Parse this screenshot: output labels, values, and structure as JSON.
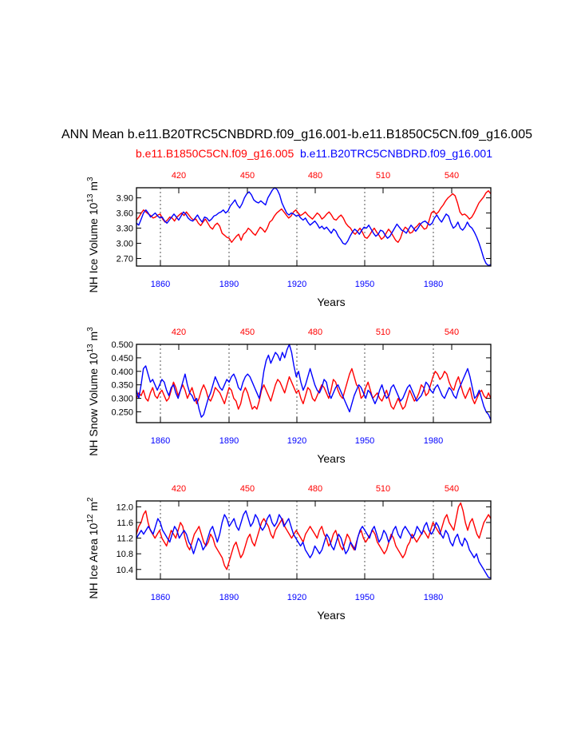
{
  "page": {
    "title": "ANN Mean b.e11.B20TRC5CNBDRD.f09_g16.001-b.e11.B1850C5CN.f09_g16.005",
    "subtitle_left": "b.e11.B1850C5CN.f09_g16.005",
    "subtitle_right": "b.e11.B20TRC5CNBDRD.f09_g16.001"
  },
  "colors": {
    "series_a": "#ff0000",
    "series_b": "#0000ff",
    "axis": "#000000",
    "ref": "#555555"
  },
  "chart_data": [
    {
      "type": "line",
      "title": "NH Ice Volume",
      "ylabel_main": "NH Ice Volume 10",
      "ylabel_exp": "13",
      "ylabel_unit": " m",
      "ylabel_unit_exp": "3",
      "xlabel": "Years",
      "xlim_bottom": [
        1850,
        2005
      ],
      "xticks_bottom": [
        "1860",
        "1890",
        "1920",
        "1950",
        "1980"
      ],
      "xticks_top": [
        "420",
        "450",
        "480",
        "510",
        "540"
      ],
      "ylim": [
        2.55,
        4.1
      ],
      "yticks": [
        "2.70",
        "3.00",
        "3.30",
        "3.60",
        "3.90"
      ],
      "series": [
        {
          "name": "b.e11.B1850C5CN.f09_g16.005",
          "color": "#ff0000",
          "values": [
            3.46,
            3.52,
            3.6,
            3.66,
            3.62,
            3.58,
            3.55,
            3.5,
            3.52,
            3.56,
            3.58,
            3.48,
            3.42,
            3.46,
            3.52,
            3.5,
            3.44,
            3.52,
            3.56,
            3.6,
            3.55,
            3.62,
            3.56,
            3.5,
            3.46,
            3.48,
            3.4,
            3.35,
            3.42,
            3.48,
            3.4,
            3.32,
            3.28,
            3.36,
            3.4,
            3.34,
            3.2,
            3.16,
            3.12,
            3.1,
            3.02,
            3.08,
            3.14,
            3.18,
            3.06,
            3.18,
            3.22,
            3.3,
            3.26,
            3.2,
            3.16,
            3.24,
            3.32,
            3.28,
            3.22,
            3.3,
            3.42,
            3.46,
            3.54,
            3.6,
            3.64,
            3.68,
            3.62,
            3.56,
            3.5,
            3.54,
            3.62,
            3.66,
            3.6,
            3.55,
            3.58,
            3.62,
            3.56,
            3.52,
            3.48,
            3.54,
            3.6,
            3.56,
            3.48,
            3.52,
            3.58,
            3.62,
            3.56,
            3.48,
            3.46,
            3.52,
            3.56,
            3.5,
            3.4,
            3.34,
            3.3,
            3.22,
            3.18,
            3.24,
            3.3,
            3.22,
            3.12,
            3.1,
            3.16,
            3.24,
            3.3,
            3.22,
            3.16,
            3.08,
            3.12,
            3.2,
            3.28,
            3.22,
            3.14,
            3.06,
            3.02,
            3.1,
            3.24,
            3.32,
            3.28,
            3.2,
            3.22,
            3.3,
            3.34,
            3.4,
            3.34,
            3.28,
            3.3,
            3.44,
            3.6,
            3.64,
            3.58,
            3.62,
            3.7,
            3.76,
            3.84,
            3.9,
            3.94,
            3.98,
            3.94,
            3.8,
            3.62,
            3.56,
            3.58,
            3.54,
            3.48,
            3.52,
            3.6,
            3.7,
            3.8,
            3.86,
            3.92,
            4.0,
            4.04,
            3.98
          ]
        },
        {
          "name": "b.e11.B20TRC5CNBDRD.f09_g16.001",
          "color": "#0000ff",
          "values": [
            3.4,
            3.36,
            3.48,
            3.6,
            3.66,
            3.6,
            3.52,
            3.56,
            3.6,
            3.54,
            3.5,
            3.52,
            3.44,
            3.4,
            3.46,
            3.52,
            3.58,
            3.52,
            3.46,
            3.54,
            3.62,
            3.58,
            3.5,
            3.46,
            3.44,
            3.5,
            3.56,
            3.48,
            3.42,
            3.52,
            3.5,
            3.44,
            3.48,
            3.54,
            3.56,
            3.6,
            3.62,
            3.66,
            3.6,
            3.64,
            3.74,
            3.8,
            3.86,
            3.76,
            3.7,
            3.78,
            3.9,
            3.98,
            4.02,
            3.96,
            3.86,
            3.82,
            3.8,
            3.84,
            3.8,
            3.76,
            3.9,
            3.98,
            4.06,
            4.1,
            4.06,
            3.96,
            3.8,
            3.7,
            3.6,
            3.56,
            3.6,
            3.58,
            3.54,
            3.56,
            3.5,
            3.46,
            3.5,
            3.42,
            3.36,
            3.4,
            3.44,
            3.38,
            3.3,
            3.34,
            3.28,
            3.32,
            3.26,
            3.2,
            3.28,
            3.24,
            3.14,
            3.08,
            3.0,
            2.98,
            3.04,
            3.14,
            3.22,
            3.28,
            3.24,
            3.18,
            3.26,
            3.32,
            3.3,
            3.36,
            3.28,
            3.2,
            3.14,
            3.18,
            3.26,
            3.24,
            3.16,
            3.1,
            3.14,
            3.22,
            3.3,
            3.38,
            3.32,
            3.26,
            3.24,
            3.2,
            3.28,
            3.36,
            3.3,
            3.24,
            3.3,
            3.38,
            3.42,
            3.44,
            3.4,
            3.36,
            3.4,
            3.5,
            3.56,
            3.48,
            3.42,
            3.5,
            3.58,
            3.54,
            3.4,
            3.3,
            3.34,
            3.42,
            3.3,
            3.26,
            3.32,
            3.42,
            3.34,
            3.3,
            3.22,
            3.12,
            3.0,
            2.86,
            2.7,
            2.6,
            2.56,
            2.58
          ]
        }
      ]
    },
    {
      "type": "line",
      "title": "NH Snow Volume",
      "ylabel_main": "NH Snow Volume 10",
      "ylabel_exp": "13",
      "ylabel_unit": " m",
      "ylabel_unit_exp": "3",
      "xlabel": "Years",
      "xlim_bottom": [
        1850,
        2005
      ],
      "xticks_bottom": [
        "1860",
        "1890",
        "1920",
        "1950",
        "1980"
      ],
      "xticks_top": [
        "420",
        "450",
        "480",
        "510",
        "540"
      ],
      "ylim": [
        0.21,
        0.5
      ],
      "yticks": [
        "0.250",
        "0.300",
        "0.350",
        "0.400",
        "0.450",
        "0.500"
      ],
      "series": [
        {
          "name": "b.e11.B1850C5CN.f09_g16.005",
          "color": "#ff0000",
          "values": [
            0.3,
            0.32,
            0.31,
            0.33,
            0.3,
            0.29,
            0.32,
            0.34,
            0.31,
            0.3,
            0.32,
            0.33,
            0.31,
            0.29,
            0.3,
            0.33,
            0.36,
            0.34,
            0.31,
            0.33,
            0.35,
            0.33,
            0.3,
            0.32,
            0.34,
            0.31,
            0.28,
            0.3,
            0.33,
            0.35,
            0.33,
            0.3,
            0.29,
            0.31,
            0.34,
            0.33,
            0.32,
            0.3,
            0.28,
            0.31,
            0.34,
            0.33,
            0.3,
            0.29,
            0.26,
            0.28,
            0.32,
            0.34,
            0.32,
            0.29,
            0.26,
            0.27,
            0.26,
            0.29,
            0.33,
            0.35,
            0.33,
            0.31,
            0.29,
            0.32,
            0.35,
            0.37,
            0.36,
            0.34,
            0.32,
            0.35,
            0.38,
            0.36,
            0.34,
            0.32,
            0.33,
            0.3,
            0.28,
            0.31,
            0.34,
            0.33,
            0.3,
            0.29,
            0.31,
            0.33,
            0.35,
            0.34,
            0.32,
            0.3,
            0.33,
            0.37,
            0.36,
            0.33,
            0.31,
            0.3,
            0.33,
            0.36,
            0.39,
            0.41,
            0.38,
            0.35,
            0.34,
            0.3,
            0.31,
            0.34,
            0.36,
            0.33,
            0.3,
            0.31,
            0.32,
            0.3,
            0.29,
            0.31,
            0.33,
            0.3,
            0.27,
            0.26,
            0.28,
            0.3,
            0.28,
            0.26,
            0.27,
            0.3,
            0.33,
            0.31,
            0.29,
            0.3,
            0.32,
            0.35,
            0.34,
            0.31,
            0.32,
            0.35,
            0.38,
            0.4,
            0.39,
            0.37,
            0.38,
            0.4,
            0.39,
            0.36,
            0.34,
            0.33,
            0.36,
            0.38,
            0.35,
            0.32,
            0.3,
            0.32,
            0.34,
            0.3,
            0.28,
            0.3,
            0.32,
            0.33,
            0.31,
            0.3,
            0.32,
            0.3
          ]
        },
        {
          "name": "b.e11.B20TRC5CNBDRD.f09_g16.001",
          "color": "#0000ff",
          "values": [
            0.33,
            0.3,
            0.35,
            0.41,
            0.42,
            0.39,
            0.36,
            0.37,
            0.35,
            0.33,
            0.35,
            0.37,
            0.36,
            0.33,
            0.31,
            0.34,
            0.35,
            0.32,
            0.3,
            0.33,
            0.36,
            0.39,
            0.35,
            0.32,
            0.31,
            0.29,
            0.3,
            0.26,
            0.23,
            0.24,
            0.27,
            0.3,
            0.32,
            0.35,
            0.38,
            0.36,
            0.34,
            0.33,
            0.35,
            0.37,
            0.36,
            0.38,
            0.39,
            0.37,
            0.34,
            0.33,
            0.36,
            0.38,
            0.39,
            0.38,
            0.36,
            0.34,
            0.32,
            0.3,
            0.34,
            0.4,
            0.44,
            0.46,
            0.43,
            0.45,
            0.47,
            0.46,
            0.44,
            0.47,
            0.45,
            0.48,
            0.5,
            0.47,
            0.42,
            0.38,
            0.4,
            0.36,
            0.33,
            0.35,
            0.38,
            0.41,
            0.38,
            0.35,
            0.33,
            0.32,
            0.34,
            0.37,
            0.36,
            0.32,
            0.3,
            0.32,
            0.34,
            0.35,
            0.33,
            0.31,
            0.29,
            0.27,
            0.25,
            0.28,
            0.31,
            0.33,
            0.35,
            0.34,
            0.32,
            0.3,
            0.33,
            0.32,
            0.3,
            0.28,
            0.3,
            0.33,
            0.35,
            0.32,
            0.3,
            0.31,
            0.34,
            0.35,
            0.33,
            0.31,
            0.29,
            0.3,
            0.32,
            0.34,
            0.35,
            0.33,
            0.31,
            0.29,
            0.3,
            0.31,
            0.33,
            0.36,
            0.35,
            0.33,
            0.32,
            0.34,
            0.35,
            0.33,
            0.31,
            0.3,
            0.32,
            0.34,
            0.33,
            0.31,
            0.3,
            0.33,
            0.35,
            0.37,
            0.39,
            0.41,
            0.38,
            0.34,
            0.3,
            0.31,
            0.33,
            0.3,
            0.27,
            0.25,
            0.24,
            0.22
          ]
        }
      ]
    },
    {
      "type": "line",
      "title": "NH Ice Area",
      "ylabel_main": "NH Ice Area 10",
      "ylabel_exp": "12",
      "ylabel_unit": " m",
      "ylabel_unit_exp": "2",
      "xlabel": "Years",
      "xlim_bottom": [
        1850,
        2005
      ],
      "xticks_bottom": [
        "1860",
        "1890",
        "1920",
        "1950",
        "1980"
      ],
      "xticks_top": [
        "420",
        "450",
        "480",
        "510",
        "540"
      ],
      "ylim": [
        10.15,
        12.15
      ],
      "yticks": [
        "10.4",
        "10.8",
        "11.2",
        "11.6",
        "12.0"
      ],
      "series": [
        {
          "name": "b.e11.B1850C5CN.f09_g16.005",
          "color": "#ff0000",
          "values": [
            11.3,
            11.5,
            11.6,
            11.8,
            11.9,
            11.6,
            11.4,
            11.3,
            11.2,
            11.3,
            11.4,
            11.2,
            11.1,
            11.0,
            11.2,
            11.4,
            11.3,
            11.2,
            11.4,
            11.6,
            11.5,
            11.2,
            11.0,
            10.9,
            11.1,
            11.3,
            11.4,
            11.5,
            11.3,
            11.1,
            11.0,
            11.1,
            11.3,
            11.2,
            11.0,
            10.9,
            10.8,
            10.7,
            10.5,
            10.4,
            10.6,
            10.8,
            11.0,
            11.1,
            10.9,
            10.7,
            10.8,
            11.0,
            11.2,
            11.3,
            11.1,
            11.0,
            11.2,
            11.4,
            11.6,
            11.7,
            11.6,
            11.5,
            11.3,
            11.2,
            11.4,
            11.5,
            11.6,
            11.7,
            11.5,
            11.4,
            11.3,
            11.2,
            11.3,
            11.4,
            11.3,
            11.2,
            11.1,
            11.3,
            11.4,
            11.5,
            11.4,
            11.3,
            11.2,
            11.4,
            11.5,
            11.3,
            11.2,
            11.0,
            11.1,
            11.3,
            11.4,
            11.2,
            11.0,
            10.9,
            11.1,
            11.3,
            11.2,
            11.0,
            10.9,
            11.1,
            11.3,
            11.4,
            11.2,
            11.1,
            11.2,
            11.3,
            11.4,
            11.3,
            11.1,
            11.0,
            10.9,
            10.8,
            10.9,
            11.1,
            11.3,
            11.2,
            11.0,
            10.9,
            10.8,
            10.7,
            10.8,
            11.0,
            11.1,
            11.3,
            11.2,
            11.1,
            11.2,
            11.3,
            11.4,
            11.3,
            11.2,
            11.4,
            11.6,
            11.5,
            11.4,
            11.3,
            11.5,
            11.7,
            11.8,
            11.6,
            11.5,
            11.4,
            11.7,
            12.0,
            12.1,
            11.9,
            11.6,
            11.4,
            11.6,
            11.7,
            11.5,
            11.3,
            11.2,
            11.4,
            11.6,
            11.7,
            11.8,
            11.7
          ]
        },
        {
          "name": "b.e11.B20TRC5CNBDRD.f09_g16.001",
          "color": "#0000ff",
          "values": [
            11.2,
            11.3,
            11.4,
            11.3,
            11.4,
            11.5,
            11.4,
            11.3,
            11.5,
            11.7,
            11.6,
            11.4,
            11.3,
            11.2,
            11.1,
            11.3,
            11.5,
            11.4,
            11.2,
            11.3,
            11.4,
            11.3,
            11.1,
            11.0,
            10.8,
            11.0,
            11.2,
            11.1,
            10.9,
            11.0,
            11.2,
            11.4,
            11.5,
            11.3,
            11.1,
            11.3,
            11.6,
            11.8,
            11.7,
            11.5,
            11.6,
            11.7,
            11.5,
            11.4,
            11.6,
            11.8,
            11.9,
            11.7,
            11.5,
            11.6,
            11.8,
            11.7,
            11.5,
            11.4,
            11.5,
            11.7,
            11.8,
            11.6,
            11.5,
            11.6,
            11.8,
            11.7,
            11.5,
            11.6,
            11.7,
            11.5,
            11.3,
            11.2,
            11.1,
            11.0,
            11.1,
            10.9,
            10.8,
            10.7,
            10.8,
            11.0,
            10.9,
            10.8,
            10.9,
            11.1,
            11.3,
            11.2,
            11.0,
            10.9,
            11.1,
            11.3,
            11.2,
            11.0,
            10.8,
            10.9,
            11.1,
            11.0,
            10.9,
            11.2,
            11.4,
            11.5,
            11.4,
            11.3,
            11.2,
            11.4,
            11.5,
            11.3,
            11.1,
            11.2,
            11.4,
            11.3,
            11.1,
            11.2,
            11.4,
            11.5,
            11.3,
            11.2,
            11.4,
            11.5,
            11.4,
            11.3,
            11.2,
            11.3,
            11.5,
            11.4,
            11.3,
            11.5,
            11.6,
            11.4,
            11.3,
            11.4,
            11.6,
            11.5,
            11.3,
            11.2,
            11.4,
            11.3,
            11.1,
            11.0,
            11.2,
            11.3,
            11.1,
            11.0,
            11.2,
            11.1,
            10.9,
            10.8,
            10.7,
            10.8,
            10.6,
            10.5,
            10.4,
            10.3,
            10.2,
            10.18
          ]
        }
      ]
    }
  ]
}
